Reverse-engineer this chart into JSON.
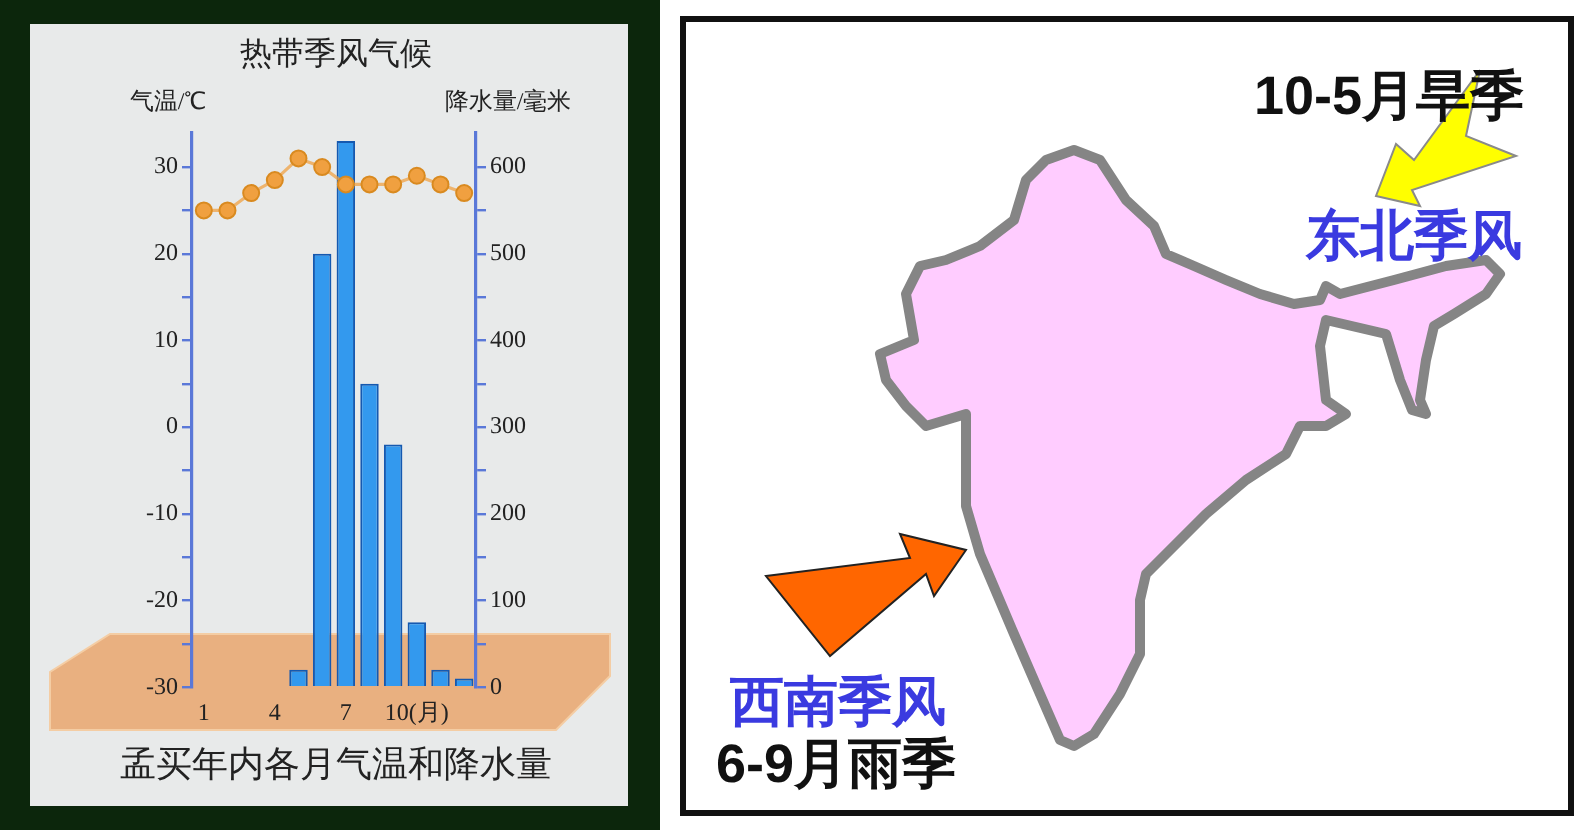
{
  "chart_data": [
    {
      "type": "bar",
      "title": "热带季风气候",
      "ylabel": "气温/℃",
      "y2label": "降水量/毫米",
      "categories": [
        "1",
        null,
        null,
        "4",
        null,
        null,
        "7",
        null,
        null,
        "10(月)",
        null,
        null
      ],
      "marker": "circle",
      "series": [
        {
          "type": "bar",
          "axis": "y2",
          "color": "#3399ee",
          "values": [
            0,
            0,
            0,
            0,
            20,
            500,
            630,
            350,
            280,
            75,
            20,
            10
          ]
        },
        {
          "type": "line",
          "axis": "y",
          "color": "#f0a040",
          "values": [
            25,
            25,
            27,
            28.5,
            31,
            30,
            28,
            28,
            28,
            29,
            28,
            27
          ]
        }
      ],
      "ylim": [
        -30,
        34
      ],
      "yticks": [
        -30,
        {
          "value": -25,
          "label": null
        },
        -20,
        {
          "value": -15,
          "label": null
        },
        -10,
        {
          "value": -5,
          "label": null
        },
        0,
        {
          "value": 5,
          "label": null
        },
        10,
        {
          "value": 15,
          "label": null
        },
        20,
        {
          "value": 25,
          "label": null
        },
        30
      ],
      "y2lim": [
        0,
        640
      ],
      "y2ticks": [
        0,
        {
          "value": 50,
          "label": null
        },
        100,
        {
          "value": 150,
          "label": null
        },
        200,
        {
          "value": 250,
          "label": null
        },
        300,
        {
          "value": 350,
          "label": null
        },
        400,
        {
          "value": 450,
          "label": null
        },
        500,
        {
          "value": 550,
          "label": null
        },
        600
      ],
      "annotations": [
        "孟买年内各月气温和降水量"
      ]
    },
    {
      "type": "other",
      "annotations": [
        "10-5月旱季",
        "东北季风",
        "西南季风",
        "6-9月雨季"
      ]
    }
  ]
}
